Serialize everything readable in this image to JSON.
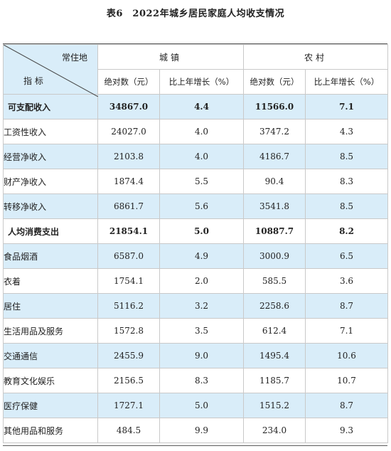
{
  "title": "表6　2022年城乡居民家庭人均收支情况",
  "header": {
    "col_label_top": "常住地",
    "row_label_bottom": "指  标",
    "group_urban": "城镇",
    "group_rural": "农村",
    "abs_label": "绝对数（元）",
    "growth_label": "比上年增长（%）"
  },
  "rows": [
    {
      "label": "可支配收入",
      "main": true,
      "urban_abs": "34867.0",
      "urban_growth": "4.4",
      "rural_abs": "11566.0",
      "rural_growth": "7.1"
    },
    {
      "label": "工资性收入",
      "main": false,
      "urban_abs": "24027.0",
      "urban_growth": "4.0",
      "rural_abs": "3747.2",
      "rural_growth": "4.3"
    },
    {
      "label": "经营净收入",
      "main": false,
      "urban_abs": "2103.8",
      "urban_growth": "4.0",
      "rural_abs": "4186.7",
      "rural_growth": "8.5"
    },
    {
      "label": "财产净收入",
      "main": false,
      "urban_abs": "1874.4",
      "urban_growth": "5.5",
      "rural_abs": "90.4",
      "rural_growth": "8.3"
    },
    {
      "label": "转移净收入",
      "main": false,
      "urban_abs": "6861.7",
      "urban_growth": "5.6",
      "rural_abs": "3541.8",
      "rural_growth": "8.5"
    },
    {
      "label": "人均消费支出",
      "main": true,
      "urban_abs": "21854.1",
      "urban_growth": "5.0",
      "rural_abs": "10887.7",
      "rural_growth": "8.2"
    },
    {
      "label": "食品烟酒",
      "main": false,
      "urban_abs": "6587.0",
      "urban_growth": "4.9",
      "rural_abs": "3000.9",
      "rural_growth": "6.5"
    },
    {
      "label": "衣着",
      "main": false,
      "urban_abs": "1754.1",
      "urban_growth": "2.0",
      "rural_abs": "585.5",
      "rural_growth": "3.6"
    },
    {
      "label": "居住",
      "main": false,
      "urban_abs": "5116.2",
      "urban_growth": "3.2",
      "rural_abs": "2258.6",
      "rural_growth": "8.7"
    },
    {
      "label": "生活用品及服务",
      "main": false,
      "urban_abs": "1572.8",
      "urban_growth": "3.5",
      "rural_abs": "612.4",
      "rural_growth": "7.1"
    },
    {
      "label": "交通通信",
      "main": false,
      "urban_abs": "2455.9",
      "urban_growth": "9.0",
      "rural_abs": "1495.4",
      "rural_growth": "10.6"
    },
    {
      "label": "教育文化娱乐",
      "main": false,
      "urban_abs": "2156.5",
      "urban_growth": "8.3",
      "rural_abs": "1185.7",
      "rural_growth": "10.7"
    },
    {
      "label": "医疗保健",
      "main": false,
      "urban_abs": "1727.1",
      "urban_growth": "5.0",
      "rural_abs": "1515.2",
      "rural_growth": "8.7"
    },
    {
      "label": "其他用品和服务",
      "main": false,
      "urban_abs": "484.5",
      "urban_growth": "9.9",
      "rural_abs": "234.0",
      "rural_growth": "9.3"
    }
  ]
}
